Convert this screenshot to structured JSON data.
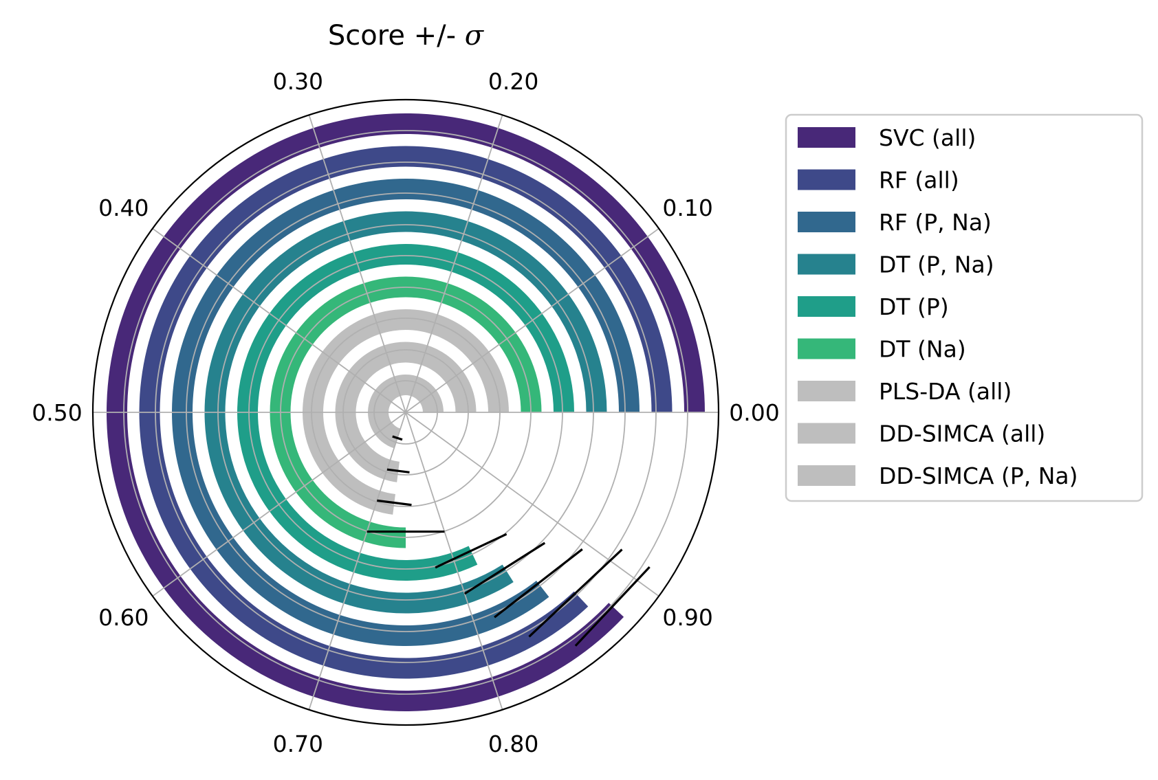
{
  "chart_data": {
    "type": "polar-bar",
    "title_prefix": "Score +/- ",
    "title_symbol": "σ",
    "angular_ticks": [
      "0.00",
      "0.10",
      "0.20",
      "0.30",
      "0.40",
      "0.50",
      "0.60",
      "0.70",
      "0.80",
      "0.90"
    ],
    "angular_range": [
      0,
      1
    ],
    "series": [
      {
        "name": "SVC (all)",
        "value": 0.88,
        "sigma": 0.03,
        "color": "#482878"
      },
      {
        "name": "RF (all)",
        "value": 0.87,
        "sigma": 0.04,
        "color": "#3e4989"
      },
      {
        "name": "RF (P, Na)",
        "value": 0.855,
        "sigma": 0.04,
        "color": "#31688e"
      },
      {
        "name": "DT (P, Na)",
        "value": 0.84,
        "sigma": 0.04,
        "color": "#26828e"
      },
      {
        "name": "DT (P)",
        "value": 0.82,
        "sigma": 0.04,
        "color": "#1f9e89"
      },
      {
        "name": "DT (Na)",
        "value": 0.75,
        "sigma": 0.05,
        "color": "#35b779"
      },
      {
        "name": "PLS-DA (all)",
        "value": 0.73,
        "sigma": 0.03,
        "color": "#bebebe"
      },
      {
        "name": "DD-SIMCA (all)",
        "value": 0.73,
        "sigma": 0.03,
        "color": "#bebebe"
      },
      {
        "name": "DD-SIMCA (P, Na)",
        "value": 0.7,
        "sigma": 0.03,
        "color": "#bebebe"
      }
    ],
    "grid": true,
    "legend_position": "right"
  }
}
